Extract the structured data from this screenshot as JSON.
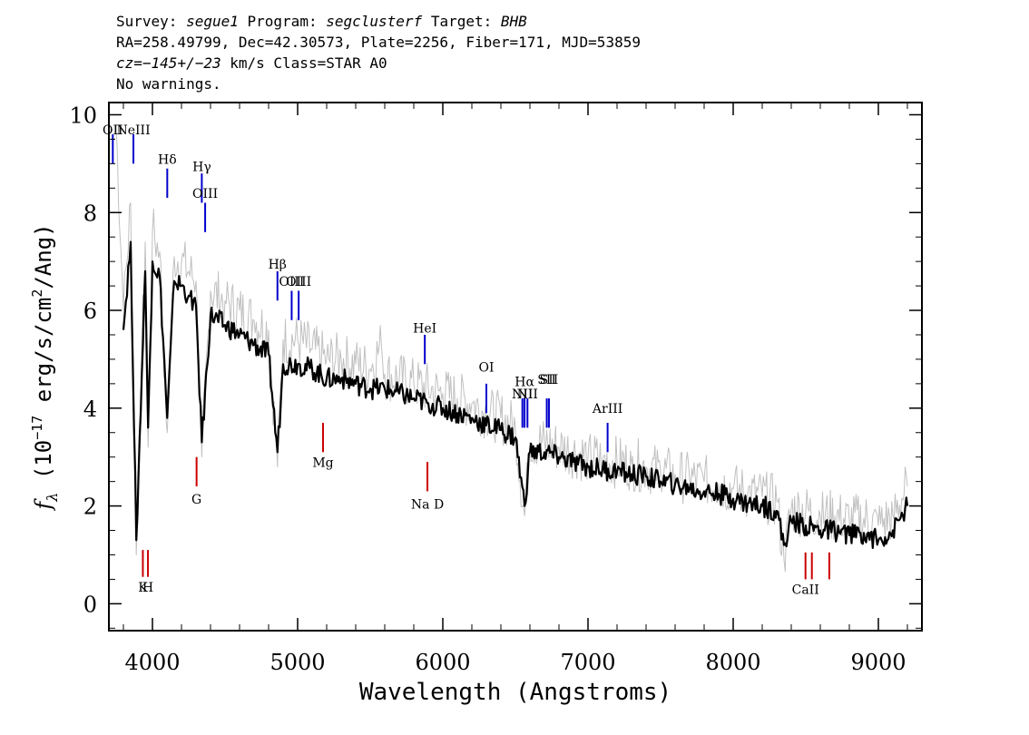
{
  "header": {
    "survey_label": "Survey:",
    "survey": "segue1",
    "program_label": "Program:",
    "program": "segclusterf",
    "target_label": "Target:",
    "target": "BHB",
    "line2": "RA=258.49799, Dec=42.30573, Plate=2256, Fiber=171, MJD=53859",
    "cz_label": "cz=",
    "cz_value": "−145+/−23",
    "cz_rest": " km/s Class=STAR A0",
    "line4": "No warnings."
  },
  "chart_data": {
    "type": "line",
    "xlabel": "Wavelength (Angstroms)",
    "ylabel_f": "f",
    "ylabel_lambda": "λ",
    "ylabel_open": " (10",
    "ylabel_exp": "−17",
    "ylabel_units": " erg/s/cm",
    "ylabel_sq": "2",
    "ylabel_close": "/Ang)",
    "xlim": [
      3700,
      9300
    ],
    "ylim": [
      -0.55,
      10.25
    ],
    "x_ticks": [
      4000,
      5000,
      6000,
      7000,
      8000,
      9000
    ],
    "y_ticks": [
      0,
      2,
      4,
      6,
      8,
      10
    ],
    "grid": false,
    "series": [
      {
        "role": "flux (smoothed)",
        "color": "#000000",
        "x": [
          3800,
          3850,
          3889,
          3950,
          3970,
          4000,
          4050,
          4102,
          4150,
          4200,
          4250,
          4300,
          4340,
          4400,
          4500,
          4600,
          4700,
          4800,
          4861,
          4900,
          5000,
          5100,
          5200,
          5300,
          5400,
          5500,
          5600,
          5700,
          5800,
          5900,
          6000,
          6100,
          6200,
          6300,
          6400,
          6500,
          6563,
          6600,
          6700,
          6800,
          6900,
          7000,
          7100,
          7200,
          7300,
          7400,
          7500,
          7600,
          7700,
          7800,
          7900,
          8000,
          8100,
          8200,
          8300,
          8350,
          8400,
          8500,
          8600,
          8700,
          8800,
          8900,
          9000,
          9100,
          9200
        ],
        "y": [
          5.6,
          7.4,
          1.3,
          6.8,
          3.6,
          7.0,
          6.7,
          3.8,
          6.6,
          6.5,
          6.3,
          6.1,
          3.3,
          5.9,
          5.7,
          5.5,
          5.3,
          5.1,
          3.1,
          4.9,
          4.9,
          4.8,
          4.6,
          4.6,
          4.5,
          4.4,
          4.4,
          4.3,
          4.2,
          4.1,
          4.0,
          3.9,
          3.8,
          3.65,
          3.55,
          3.4,
          2.0,
          3.1,
          3.1,
          3.0,
          2.9,
          2.8,
          2.75,
          2.7,
          2.65,
          2.6,
          2.5,
          2.45,
          2.35,
          2.3,
          2.25,
          2.15,
          2.05,
          2.0,
          1.9,
          1.2,
          1.7,
          1.6,
          1.5,
          1.5,
          1.4,
          1.45,
          1.3,
          1.5,
          2.0
        ]
      },
      {
        "role": "flux (unsmoothed)",
        "color": "#c0c0c0",
        "x": [
          3750,
          3800,
          3850,
          3889,
          3950,
          3970,
          4000,
          4050,
          4102,
          4150,
          4200,
          4250,
          4300,
          4340,
          4400,
          4500,
          4600,
          4700,
          4800,
          4861,
          4900,
          5000,
          5100,
          5200,
          5300,
          5400,
          5500,
          5577,
          5600,
          5700,
          5800,
          5900,
          6000,
          6100,
          6200,
          6300,
          6400,
          6500,
          6563,
          6600,
          6700,
          6800,
          6900,
          7000,
          7100,
          7200,
          7300,
          7400,
          7500,
          7600,
          7700,
          7800,
          7900,
          8000,
          8100,
          8200,
          8300,
          8350,
          8400,
          8500,
          8600,
          8700,
          8800,
          8900,
          9000,
          9100,
          9200
        ],
        "y": [
          9.8,
          6.0,
          8.2,
          1.0,
          7.4,
          3.2,
          7.6,
          7.2,
          3.5,
          7.1,
          7.0,
          6.8,
          6.6,
          3.0,
          6.4,
          6.2,
          6.0,
          5.8,
          5.6,
          2.8,
          5.4,
          5.4,
          5.2,
          5.0,
          5.0,
          4.9,
          4.8,
          5.3,
          4.7,
          4.6,
          4.5,
          4.4,
          4.3,
          4.2,
          4.1,
          3.9,
          3.8,
          3.6,
          1.8,
          3.3,
          3.3,
          3.2,
          3.1,
          3.0,
          2.95,
          2.9,
          2.85,
          2.8,
          2.7,
          2.65,
          2.55,
          2.5,
          2.45,
          2.35,
          2.25,
          2.2,
          2.1,
          0.9,
          1.95,
          1.9,
          1.8,
          1.8,
          1.7,
          1.75,
          1.6,
          1.8,
          2.4
        ]
      }
    ],
    "emission_lines": [
      {
        "label": "OII",
        "wavelength": 3727,
        "y_top": 9.6,
        "y_bottom": 9.0,
        "label_y": 9.6
      },
      {
        "label": "NeIII",
        "wavelength": 3869,
        "y_top": 9.6,
        "y_bottom": 9.0,
        "label_y": 9.6
      },
      {
        "label": "Hδ",
        "wavelength": 4102,
        "y_top": 8.9,
        "y_bottom": 8.3,
        "label_y": 9.0
      },
      {
        "label": "Hγ",
        "wavelength": 4340,
        "y_top": 8.8,
        "y_bottom": 8.2,
        "label_y": 8.85
      },
      {
        "label": "OIII",
        "wavelength": 4363,
        "y_top": 8.2,
        "y_bottom": 7.6,
        "label_y": 8.3
      },
      {
        "label": "Hβ",
        "wavelength": 4861,
        "y_top": 6.8,
        "y_bottom": 6.2,
        "label_y": 6.85
      },
      {
        "label": "OIII",
        "wavelength": 4959,
        "y_top": 6.4,
        "y_bottom": 5.8,
        "label_y": 6.5
      },
      {
        "label": "OIII",
        "wavelength": 5007,
        "y_top": 6.4,
        "y_bottom": 5.8,
        "label_y": 6.5
      },
      {
        "label": "HeI",
        "wavelength": 5876,
        "y_top": 5.5,
        "y_bottom": 4.9,
        "label_y": 5.55
      },
      {
        "label": "OI",
        "wavelength": 6300,
        "y_top": 4.5,
        "y_bottom": 3.9,
        "label_y": 4.75
      },
      {
        "label": "NII",
        "wavelength": 6548,
        "y_top": 4.2,
        "y_bottom": 3.6,
        "label_y": 4.2
      },
      {
        "label": "Hα",
        "wavelength": 6563,
        "y_top": 4.2,
        "y_bottom": 3.6,
        "label_y": 4.45
      },
      {
        "label": "NII",
        "wavelength": 6583,
        "y_top": 4.2,
        "y_bottom": 3.6,
        "label_y": 4.2
      },
      {
        "label": "SII",
        "wavelength": 6716,
        "y_top": 4.2,
        "y_bottom": 3.6,
        "label_y": 4.5
      },
      {
        "label": "SII",
        "wavelength": 6731,
        "y_top": 4.2,
        "y_bottom": 3.6,
        "label_y": 4.5
      },
      {
        "label": "ArIII",
        "wavelength": 7135,
        "y_top": 3.7,
        "y_bottom": 3.1,
        "label_y": 3.9
      }
    ],
    "absorption_lines": [
      {
        "label": "K",
        "wavelength": 3934,
        "y_top": 1.1,
        "y_bottom": 0.55,
        "label_y": 0.25
      },
      {
        "label": "H",
        "wavelength": 3969,
        "y_top": 1.1,
        "y_bottom": 0.55,
        "label_y": 0.25
      },
      {
        "label": "G",
        "wavelength": 4304,
        "y_top": 3.0,
        "y_bottom": 2.4,
        "label_y": 2.05
      },
      {
        "label": "Mg",
        "wavelength": 5175,
        "y_top": 3.7,
        "y_bottom": 3.1,
        "label_y": 2.8
      },
      {
        "label": "Na D",
        "wavelength": 5894,
        "y_top": 2.9,
        "y_bottom": 2.3,
        "label_y": 1.95
      },
      {
        "label": "CaII",
        "wavelength": 8498,
        "y_top": 1.05,
        "y_bottom": 0.5,
        "label_y": 0.2
      },
      {
        "label": "CaII",
        "wavelength": 8542,
        "y_top": 1.05,
        "y_bottom": 0.5,
        "label_y": null
      },
      {
        "label": "CaII",
        "wavelength": 8662,
        "y_top": 1.05,
        "y_bottom": 0.5,
        "label_y": null
      }
    ],
    "colors": {
      "emission": "#0000cc",
      "absorption": "#cc0000",
      "axes": "#000000"
    }
  }
}
